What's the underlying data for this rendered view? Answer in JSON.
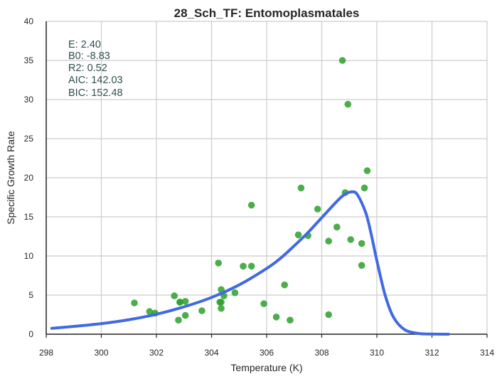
{
  "chart_data": {
    "type": "scatter",
    "title": "28_Sch_TF: Entomoplasmatales",
    "xlabel": "Temperature (K)",
    "ylabel": "Specific Growth Rate",
    "xlim": [
      298,
      314
    ],
    "ylim": [
      0,
      40
    ],
    "xticks": [
      "298",
      "300",
      "302",
      "304",
      "306",
      "308",
      "310",
      "312",
      "314"
    ],
    "yticks": [
      "0",
      "5",
      "10",
      "15",
      "20",
      "25",
      "30",
      "35",
      "40"
    ],
    "grid": true,
    "annotations": [
      "E:  2.40",
      "B0:  -8.83",
      "R2:  0.52",
      "AIC: 142.03",
      "BIC: 152.48"
    ],
    "colors": {
      "points": "#2ca02c",
      "curve": "#4169e1",
      "grid": "#cccccc",
      "axis": "#262626",
      "annotation": "#2f4f4f"
    },
    "series": [
      {
        "kind": "points",
        "x": [
          301.2,
          301.75,
          301.95,
          302.65,
          302.8,
          302.85,
          302.85,
          303.05,
          303.05,
          303.65,
          304.25,
          304.3,
          304.35,
          304.35,
          304.35,
          304.45,
          304.85,
          305.15,
          305.45,
          305.45,
          305.9,
          306.35,
          306.65,
          306.85,
          307.15,
          307.25,
          307.5,
          307.85,
          308.25,
          308.25,
          308.55,
          308.75,
          308.85,
          308.95,
          309.05,
          309.45,
          309.45,
          309.55,
          309.65
        ],
        "y": [
          4.0,
          2.9,
          2.7,
          4.9,
          1.8,
          4.1,
          4.1,
          4.2,
          2.4,
          3.0,
          9.1,
          4.1,
          5.7,
          4.1,
          3.3,
          4.9,
          5.3,
          8.7,
          16.5,
          8.7,
          3.9,
          2.2,
          6.3,
          1.8,
          12.7,
          18.7,
          12.6,
          16.0,
          2.5,
          11.9,
          13.7,
          35.0,
          18.1,
          29.4,
          12.1,
          8.8,
          11.6,
          18.7,
          20.9
        ]
      },
      {
        "kind": "fit",
        "x": [
          298.2,
          299,
          300,
          301,
          302,
          303,
          304,
          305,
          306,
          306.5,
          307,
          307.5,
          308,
          308.5,
          308.8,
          309.1,
          309.3,
          309.6,
          309.8,
          310,
          310.3,
          310.6,
          311,
          311.5,
          312,
          312.6
        ],
        "y": [
          0.75,
          1.0,
          1.35,
          1.85,
          2.55,
          3.5,
          4.7,
          6.3,
          8.4,
          9.7,
          11.3,
          13.0,
          14.9,
          16.8,
          17.8,
          18.2,
          17.8,
          15.5,
          12.7,
          9.4,
          5.0,
          2.2,
          0.6,
          0.1,
          0.02,
          0.0
        ]
      }
    ]
  }
}
